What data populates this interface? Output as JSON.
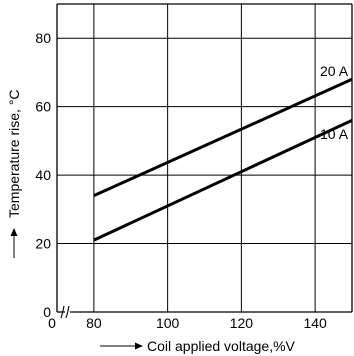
{
  "chart_data": {
    "type": "line",
    "xlabel": "Coil applied voltage,%V",
    "ylabel": "Temperature rise, °C",
    "xlim": [
      70,
      150
    ],
    "ylim": [
      0,
      90
    ],
    "x_ticks": [
      80,
      100,
      120,
      140
    ],
    "y_ticks": [
      0,
      20,
      40,
      60,
      80
    ],
    "x_origin_label": "0",
    "x_axis_break": true,
    "grid": true,
    "series": [
      {
        "name": "20 A",
        "x": [
          80,
          150
        ],
        "y": [
          34,
          68
        ]
      },
      {
        "name": "10 A",
        "x": [
          80,
          150
        ],
        "y": [
          21,
          56
        ]
      }
    ]
  }
}
